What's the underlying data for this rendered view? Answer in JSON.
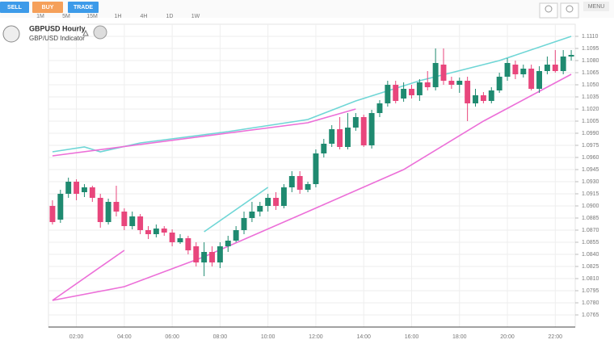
{
  "toolbar": {
    "buttons": [
      "SELL",
      "BUY",
      "TRADE"
    ],
    "timeframes": [
      "1M",
      "5M",
      "15M",
      "1H",
      "4H",
      "1D",
      "1W"
    ],
    "menu": "MENU"
  },
  "chart_data": {
    "type": "candlestick",
    "title": "GBPUSD Hourly",
    "subtitle": "GBP/USD Indicator",
    "categories": [
      null,
      null,
      null,
      "02:00",
      null,
      null,
      null,
      null,
      null,
      "04:00",
      null,
      null,
      null,
      null,
      null,
      "06:00",
      null,
      null,
      null,
      null,
      null,
      "08:00",
      null,
      null,
      null,
      null,
      null,
      "10:00",
      null,
      null,
      null,
      null,
      null,
      "12:00",
      null,
      null,
      null,
      null,
      null,
      "14:00",
      null,
      null,
      null,
      null,
      null,
      "16:00",
      null,
      null,
      null,
      null,
      null,
      "18:00",
      null,
      null,
      null,
      null,
      null,
      "20:00",
      null,
      null,
      null,
      null,
      null,
      "22:00",
      null,
      null
    ],
    "open": [
      1.09,
      1.0883,
      1.0915,
      1.093,
      1.0917,
      1.0923,
      1.091,
      1.088,
      1.0905,
      1.0893,
      1.0875,
      1.0887,
      1.087,
      1.0865,
      1.0872,
      1.0867,
      1.0855,
      1.086,
      1.085,
      1.083,
      1.0843,
      1.083,
      1.085,
      1.0857,
      1.087,
      1.0885,
      1.0893,
      1.09,
      1.091,
      1.09,
      1.0923,
      1.0937,
      1.092,
      1.0927,
      1.0965,
      1.0977,
      1.0995,
      1.0973,
      1.0997,
      1.101,
      1.0975,
      1.1015,
      1.1027,
      1.105,
      1.1033,
      1.1045,
      1.1037,
      1.1053,
      1.1047,
      1.1075,
      1.1055,
      1.105,
      1.1055,
      1.1027,
      1.1037,
      1.103,
      1.1043,
      1.106,
      1.1075,
      1.1063,
      1.107,
      1.1045,
      1.1067,
      1.1075,
      1.1067,
      1.1085
    ],
    "close": [
      1.088,
      1.0915,
      1.093,
      1.0915,
      1.0923,
      1.091,
      1.088,
      1.0905,
      1.0893,
      1.0875,
      1.0887,
      1.087,
      1.0865,
      1.0872,
      1.0867,
      1.0855,
      1.086,
      1.0845,
      1.083,
      1.0843,
      1.083,
      1.085,
      1.0857,
      1.087,
      1.0885,
      1.0893,
      1.09,
      1.091,
      1.09,
      1.0923,
      1.0937,
      1.092,
      1.0927,
      1.0965,
      1.0977,
      1.0995,
      1.0973,
      1.0997,
      1.101,
      1.0975,
      1.1015,
      1.1027,
      1.105,
      1.103,
      1.1045,
      1.1037,
      1.1053,
      1.1047,
      1.1077,
      1.1055,
      1.105,
      1.1055,
      1.1027,
      1.1037,
      1.103,
      1.1043,
      1.106,
      1.1077,
      1.1063,
      1.107,
      1.1045,
      1.1067,
      1.1075,
      1.1067,
      1.1085,
      1.1087
    ],
    "high": [
      1.0907,
      1.092,
      1.0935,
      1.0933,
      1.0927,
      1.0925,
      1.0915,
      1.0909,
      1.0925,
      1.0897,
      1.0893,
      1.089,
      1.0875,
      1.0877,
      1.0875,
      1.0871,
      1.0865,
      1.0863,
      1.0855,
      1.0855,
      1.085,
      1.0855,
      1.0863,
      1.0875,
      1.0893,
      1.0905,
      1.0905,
      1.0915,
      1.0917,
      1.0927,
      1.0943,
      1.0943,
      1.093,
      1.097,
      1.0983,
      1.1,
      1.101,
      1.1015,
      1.1015,
      1.1013,
      1.1019,
      1.1031,
      1.1055,
      1.1055,
      1.1053,
      1.105,
      1.1057,
      1.1067,
      1.1095,
      1.1095,
      1.106,
      1.1059,
      1.106,
      1.1045,
      1.1041,
      1.1047,
      1.1065,
      1.1083,
      1.108,
      1.1075,
      1.1075,
      1.1073,
      1.1085,
      1.1093,
      1.1093,
      1.1093
    ],
    "low": [
      1.0877,
      1.0879,
      1.091,
      1.0907,
      1.0911,
      1.0905,
      1.0873,
      1.0877,
      1.0887,
      1.087,
      1.0871,
      1.0865,
      1.0859,
      1.0861,
      1.0863,
      1.085,
      1.0853,
      1.084,
      1.0825,
      1.0813,
      1.0825,
      1.0823,
      1.0843,
      1.0855,
      1.0865,
      1.088,
      1.0887,
      1.0893,
      1.0895,
      1.0897,
      1.0917,
      1.0915,
      1.0917,
      1.0923,
      1.096,
      1.0973,
      1.097,
      1.097,
      1.0993,
      1.0973,
      1.0971,
      1.101,
      1.1023,
      1.1027,
      1.1029,
      1.1033,
      1.103,
      1.1043,
      1.1043,
      1.105,
      1.1045,
      1.104,
      1.1005,
      1.1023,
      1.1027,
      1.1027,
      1.104,
      1.1055,
      1.1057,
      1.1059,
      1.1043,
      1.104,
      1.1063,
      1.1065,
      1.1063,
      1.108
    ],
    "up_color": "#1f8a70",
    "down_color": "#e8467c",
    "ylim": [
      1.075,
      1.1125
    ],
    "yticks": [
      1.0765,
      {
        "value": 1.078,
        "label": "1.0780"
      },
      1.0795,
      {
        "value": 1.081,
        "label": "1.0810"
      },
      1.0825,
      {
        "value": 1.084,
        "label": "1.0840"
      },
      1.0855,
      {
        "value": 1.087,
        "label": "1.0870"
      },
      1.0885,
      {
        "value": 1.09,
        "label": "1.0900"
      },
      1.0915,
      {
        "value": 1.093,
        "label": "1.0930"
      },
      1.0945,
      {
        "value": 1.096,
        "label": "1.0960"
      },
      1.0975,
      {
        "value": 1.099,
        "label": "1.0990"
      },
      1.1005,
      {
        "value": 1.102,
        "label": "1.1020"
      },
      1.1035,
      {
        "value": 1.105,
        "label": "1.1050"
      },
      1.1065,
      {
        "value": 1.108,
        "label": "1.1080"
      },
      1.1095,
      {
        "value": 1.111,
        "label": "1.1110"
      }
    ],
    "grid": true,
    "overlays": [
      {
        "type": "line",
        "color": "#6fd6d6",
        "x": [
          0,
          4,
          6,
          11,
          22,
          32,
          38,
          46,
          56,
          65
        ],
        "values": [
          1.0967,
          1.0973,
          1.0967,
          1.0978,
          1.0992,
          1.1007,
          1.103,
          1.1055,
          1.108,
          1.111
        ]
      },
      {
        "type": "line",
        "color": "#6fd6d6",
        "x": [
          19,
          27
        ],
        "values": [
          1.0868,
          1.0923
        ]
      },
      {
        "type": "line",
        "color": "#ec6fd8",
        "x": [
          0,
          32,
          38
        ],
        "values": [
          1.0962,
          1.1003,
          1.102
        ]
      },
      {
        "type": "line",
        "color": "#ec6fd8",
        "x": [
          0,
          9
        ],
        "values": [
          1.0783,
          1.0845
        ]
      },
      {
        "type": "line",
        "color": "#ec6fd8",
        "x": [
          0,
          9,
          19,
          32,
          44,
          54,
          65
        ],
        "values": [
          1.0783,
          1.08,
          1.0837,
          1.0893,
          1.0945,
          1.1005,
          1.1063
        ]
      }
    ]
  }
}
